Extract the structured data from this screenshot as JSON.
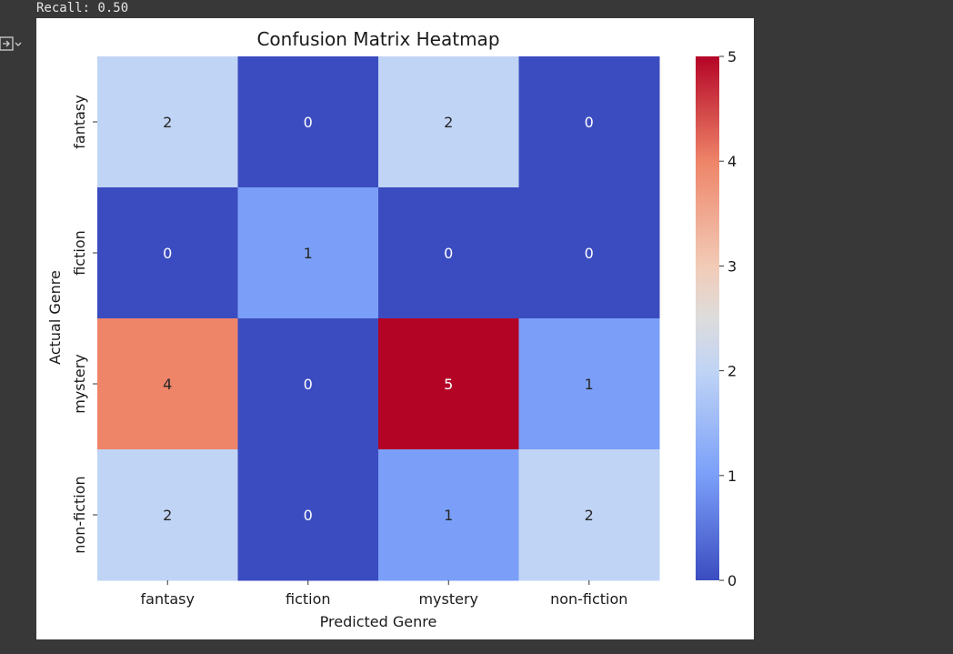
{
  "output": {
    "text": "Recall: 0.50",
    "icon": "output-expand-icon"
  },
  "chart_data": {
    "type": "heatmap",
    "title": "Confusion Matrix Heatmap",
    "xlabel": "Predicted Genre",
    "ylabel": "Actual Genre",
    "x_categories": [
      "fantasy",
      "fiction",
      "mystery",
      "non-fiction"
    ],
    "y_categories": [
      "fantasy",
      "fiction",
      "mystery",
      "non-fiction"
    ],
    "values": [
      [
        2,
        0,
        2,
        0
      ],
      [
        0,
        1,
        0,
        0
      ],
      [
        4,
        0,
        5,
        1
      ],
      [
        2,
        0,
        1,
        2
      ]
    ],
    "colormap": "coolwarm",
    "vmin": 0,
    "vmax": 5,
    "colorbar_ticks": [
      "0",
      "1",
      "2",
      "3",
      "4",
      "5"
    ],
    "annotations": true
  }
}
